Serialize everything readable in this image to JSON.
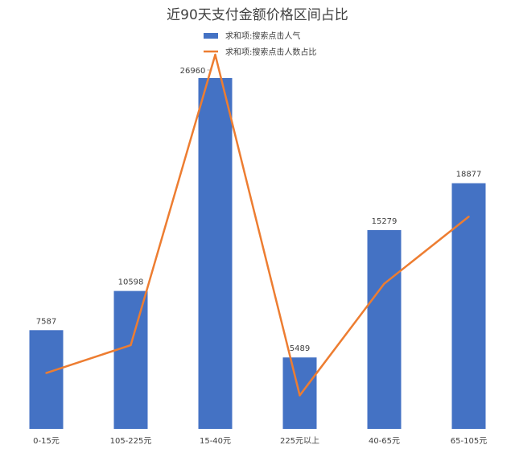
{
  "chart_data": {
    "type": "bar",
    "title": "近90天支付金额价格区间占比",
    "categories": [
      "0-15元",
      "105-225元",
      "15-40元",
      "225元以上",
      "40-65元",
      "65-105元"
    ],
    "series": [
      {
        "name": "求和项:搜索点击人气",
        "type": "bar",
        "values": [
          7587,
          10598,
          26960,
          5489,
          15279,
          18877
        ],
        "color": "#4472C4"
      },
      {
        "name": "求和项:搜索点击人数占比",
        "type": "line",
        "values": [
          0.1,
          0.15,
          0.67,
          0.06,
          0.26,
          0.38
        ],
        "color": "#ED7D31"
      }
    ],
    "data_labels": [
      "7587",
      "10598",
      "26960",
      "5489",
      "15279",
      "18877"
    ],
    "legend_position": "top",
    "grid": false,
    "ylim": [
      0,
      30000
    ]
  }
}
